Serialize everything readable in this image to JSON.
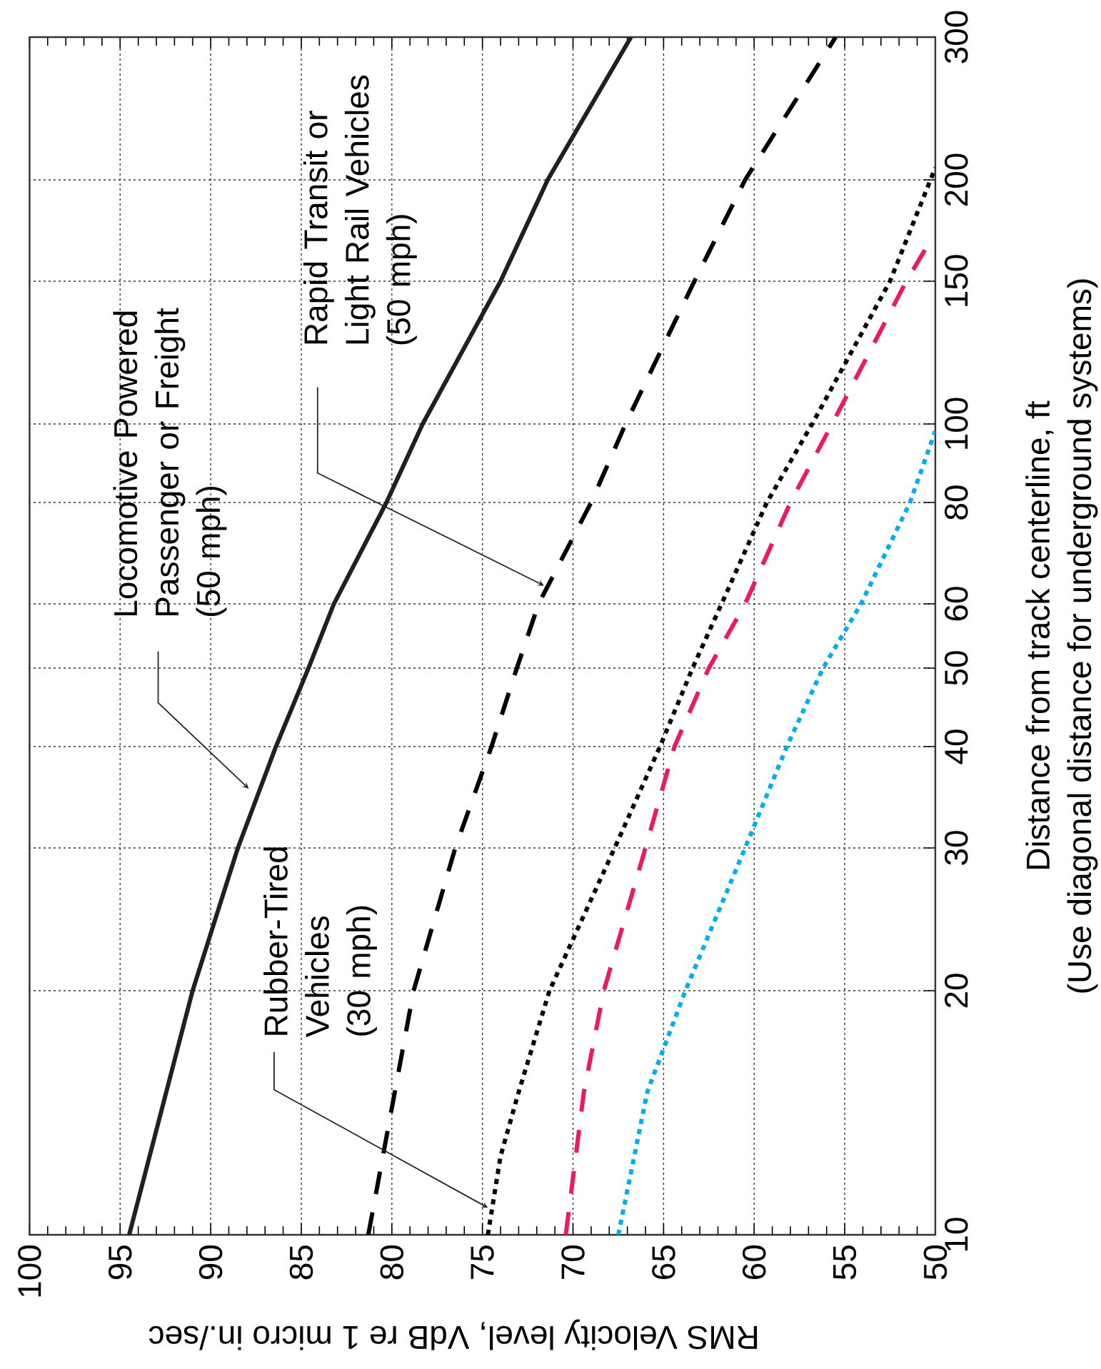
{
  "chart_data": {
    "type": "line",
    "log": "y",
    "grid": true,
    "xlabel": "RMS Velocity level, VdB re 1 micro in./sec",
    "ylabel": "Distance from track centerline, ft",
    "xlim": [
      100,
      50
    ],
    "xticks": [
      100,
      95,
      90,
      85,
      80,
      75,
      70,
      65,
      60,
      55,
      50
    ],
    "ylim": [
      10,
      300
    ],
    "yticks": [
      10,
      20,
      30,
      40,
      50,
      60,
      80,
      100,
      150,
      200,
      300
    ],
    "series": [
      {
        "color": "#231f20",
        "line_style": "solid",
        "x": [
          94.5,
          91,
          88.5,
          86.4,
          84.6,
          83.2,
          80.3,
          78.3,
          74,
          71.4,
          66.8
        ],
        "values": [
          10,
          20,
          30,
          40,
          50,
          60,
          80,
          100,
          150,
          200,
          300
        ]
      },
      {
        "color": "#000000",
        "line_style": "dashed",
        "x": [
          81.3,
          78.8,
          76.5,
          74.5,
          73.1,
          71.9,
          69.0,
          67.1,
          63.3,
          60.5,
          55.5
        ],
        "values": [
          10,
          20,
          30,
          40,
          50,
          60,
          80,
          100,
          150,
          200,
          300
        ]
      },
      {
        "color": "#000000",
        "line_style": "dotted",
        "x": [
          74.7,
          74,
          73,
          71.3,
          67.7,
          65.2,
          63.4,
          61.8,
          59.3,
          56.8,
          52.5,
          50
        ],
        "values": [
          10,
          12.5,
          15,
          20,
          30,
          40,
          50,
          60,
          80,
          100,
          150,
          207
        ]
      },
      {
        "color": "#ec1c5c",
        "line_style": "dashed",
        "x": [
          70.4,
          69.4,
          68.3,
          66,
          64.4,
          62.5,
          60.5,
          58,
          55.7,
          51.6,
          50.5
        ],
        "values": [
          10,
          15,
          20,
          30,
          40,
          50,
          60,
          80,
          100,
          150,
          165
        ]
      },
      {
        "color": "#00aeef",
        "line_style": "dotted",
        "x": [
          67.5,
          65.9,
          63.8,
          60.5,
          58.2,
          56.2,
          54.1,
          51.4,
          50
        ],
        "values": [
          10,
          15,
          20,
          30,
          40,
          50,
          60,
          80,
          98
        ]
      }
    ],
    "annotations": [
      "Locomotive Powered Passenger or Freight",
      "(50 mph)",
      "Rapid Transit or Light Rail Vehicles",
      "(50 mph)",
      "Rubber-Tired Vehicles",
      "(30 mph)",
      "(Use diagonal distance for underground systems)"
    ]
  }
}
